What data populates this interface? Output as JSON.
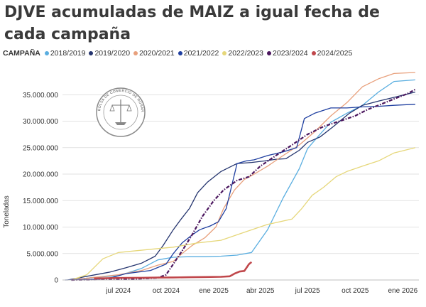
{
  "chart_data": {
    "type": "line",
    "title": "DJVE acumuladas de MAIZ a igual fecha de cada campaña",
    "legend_title": "CAMPAÑA",
    "ylabel": "Toneladas",
    "ylim": [
      0,
      40000000
    ],
    "yticks": [
      0,
      5000000,
      10000000,
      15000000,
      20000000,
      25000000,
      30000000,
      35000000
    ],
    "ytick_labels": [
      "0",
      "5.000.000",
      "10.000.000",
      "15.000.000",
      "20.000.000",
      "25.000.000",
      "30.000.000",
      "35.000.000"
    ],
    "xlim": [
      "2024-03-15",
      "2026-02-01"
    ],
    "xticks": [
      "2024-07-01",
      "2024-10-01",
      "2025-01-01",
      "2025-04-01",
      "2025-07-01",
      "2025-10-01",
      "2026-01-01"
    ],
    "xtick_labels": [
      "jul 2024",
      "oct 2024",
      "ene 2025",
      "abr 2025",
      "jul 2025",
      "oct 2025",
      "ene 2026"
    ],
    "watermark": "BOLSA DE COMERCIO DE ROSARIO",
    "series": [
      {
        "name": "2018/2019",
        "color": "#5aaee0",
        "style": "solid",
        "x": [
          "2024-04-01",
          "2024-05-15",
          "2024-07-01",
          "2024-08-15",
          "2024-09-15",
          "2024-10-15",
          "2024-11-15",
          "2024-12-15",
          "2025-01-15",
          "2025-02-15",
          "2025-03-15",
          "2025-04-15",
          "2025-05-15",
          "2025-06-15",
          "2025-07-01",
          "2025-07-25",
          "2025-08-15",
          "2025-09-15",
          "2025-10-15",
          "2025-11-15",
          "2025-12-15",
          "2026-01-25"
        ],
        "y": [
          0,
          500000,
          800000,
          2200000,
          3800000,
          4300000,
          4400000,
          4400000,
          4500000,
          4700000,
          5200000,
          9500000,
          15500000,
          21000000,
          24800000,
          27500000,
          29800000,
          31500000,
          33000000,
          35500000,
          37500000,
          37800000
        ]
      },
      {
        "name": "2019/2020",
        "color": "#24346e",
        "style": "solid",
        "x": [
          "2024-03-25",
          "2024-05-01",
          "2024-06-15",
          "2024-07-15",
          "2024-08-15",
          "2024-09-10",
          "2024-09-25",
          "2024-10-15",
          "2024-10-30",
          "2024-11-15",
          "2024-12-01",
          "2024-12-20",
          "2025-01-15",
          "2025-02-15",
          "2025-03-15",
          "2025-04-10",
          "2025-05-01",
          "2025-05-20",
          "2025-06-15",
          "2025-07-01",
          "2025-07-25",
          "2025-08-20",
          "2025-09-20",
          "2025-10-15",
          "2025-11-15",
          "2025-12-15",
          "2026-01-25"
        ],
        "y": [
          0,
          700000,
          1500000,
          2300000,
          3200000,
          4500000,
          6500000,
          9500000,
          11500000,
          13500000,
          16500000,
          18500000,
          20500000,
          22000000,
          22200000,
          22500000,
          22800000,
          22900000,
          24500000,
          26000000,
          27000000,
          29000000,
          31500000,
          33000000,
          33800000,
          34500000,
          35500000
        ]
      },
      {
        "name": "2020/2021",
        "color": "#e8a07c",
        "style": "solid",
        "x": [
          "2024-04-01",
          "2024-05-15",
          "2024-07-01",
          "2024-08-15",
          "2024-09-15",
          "2024-10-15",
          "2024-11-01",
          "2024-11-20",
          "2024-12-15",
          "2025-01-05",
          "2025-01-20",
          "2025-02-10",
          "2025-03-01",
          "2025-03-20",
          "2025-04-15",
          "2025-05-15",
          "2025-06-15",
          "2025-07-15",
          "2025-08-15",
          "2025-09-15",
          "2025-10-15",
          "2025-11-15",
          "2025-12-15",
          "2026-01-25"
        ],
        "y": [
          0,
          500000,
          1000000,
          1800000,
          2800000,
          3500000,
          5000000,
          6500000,
          8000000,
          10000000,
          13500000,
          17000000,
          19000000,
          20000000,
          21500000,
          23500000,
          25500000,
          28000000,
          31000000,
          33500000,
          36500000,
          38000000,
          39000000,
          39200000
        ]
      },
      {
        "name": "2021/2022",
        "color": "#1f3fa0",
        "style": "solid",
        "x": [
          "2024-03-20",
          "2024-05-01",
          "2024-06-01",
          "2024-06-20",
          "2024-07-15",
          "2024-09-01",
          "2024-10-01",
          "2024-10-15",
          "2024-11-01",
          "2024-11-20",
          "2024-12-05",
          "2024-12-25",
          "2025-01-10",
          "2025-01-25",
          "2025-02-15",
          "2025-03-05",
          "2025-03-20",
          "2025-04-15",
          "2025-05-15",
          "2025-06-10",
          "2025-06-25",
          "2025-07-15",
          "2025-08-15",
          "2025-09-15",
          "2025-10-15",
          "2025-11-15",
          "2025-12-15",
          "2026-01-25"
        ],
        "y": [
          0,
          100000,
          200000,
          500000,
          1200000,
          1800000,
          3000000,
          5000000,
          7000000,
          8500000,
          9500000,
          10200000,
          11000000,
          13500000,
          22000000,
          22500000,
          22700000,
          23500000,
          24200000,
          25000000,
          30500000,
          31500000,
          32500000,
          32500000,
          32700000,
          32800000,
          33000000,
          33200000
        ]
      },
      {
        "name": "2022/2023",
        "color": "#e6d77a",
        "style": "solid",
        "x": [
          "2024-04-01",
          "2024-05-01",
          "2024-06-01",
          "2024-07-01",
          "2024-09-01",
          "2024-10-15",
          "2024-12-01",
          "2025-01-15",
          "2025-03-01",
          "2025-04-15",
          "2025-06-01",
          "2025-06-20",
          "2025-07-10",
          "2025-08-01",
          "2025-08-25",
          "2025-09-15",
          "2025-10-15",
          "2025-11-15",
          "2025-12-15",
          "2026-01-25"
        ],
        "y": [
          0,
          1000000,
          4000000,
          5200000,
          5800000,
          6200000,
          7000000,
          7500000,
          9000000,
          10500000,
          11500000,
          13500000,
          16000000,
          17500000,
          19500000,
          20500000,
          21500000,
          22500000,
          24000000,
          25000000
        ]
      },
      {
        "name": "2023/2024",
        "color": "#4b165e",
        "style": "dashdot",
        "x": [
          "2024-04-01",
          "2024-06-01",
          "2024-08-01",
          "2024-09-15",
          "2024-10-01",
          "2024-10-15",
          "2024-11-01",
          "2024-11-20",
          "2024-12-10",
          "2025-01-01",
          "2025-01-20",
          "2025-02-15",
          "2025-03-10",
          "2025-04-01",
          "2025-05-01",
          "2025-06-01",
          "2025-07-01",
          "2025-08-01",
          "2025-09-01",
          "2025-10-01",
          "2025-10-25",
          "2025-11-20",
          "2025-12-15",
          "2026-01-10",
          "2026-01-25"
        ],
        "y": [
          0,
          100000,
          200000,
          400000,
          1000000,
          3000000,
          5500000,
          8500000,
          12000000,
          15000000,
          17000000,
          18800000,
          19500000,
          21500000,
          23500000,
          25500000,
          27500000,
          29000000,
          30000000,
          31000000,
          32200000,
          33200000,
          34200000,
          35200000,
          36000000
        ]
      },
      {
        "name": "2024/2025",
        "color": "#c0474b",
        "style": "solid",
        "x": [
          "2024-05-15",
          "2024-06-15",
          "2024-07-15",
          "2024-08-15",
          "2024-09-15",
          "2024-10-15",
          "2024-11-15",
          "2024-12-15",
          "2025-01-15",
          "2025-02-01",
          "2025-02-10",
          "2025-02-20",
          "2025-03-01",
          "2025-03-10",
          "2025-03-15"
        ],
        "y": [
          300000,
          350000,
          400000,
          420000,
          450000,
          480000,
          520000,
          560000,
          600000,
          700000,
          1200000,
          1600000,
          1700000,
          3000000,
          3400000
        ]
      }
    ]
  }
}
